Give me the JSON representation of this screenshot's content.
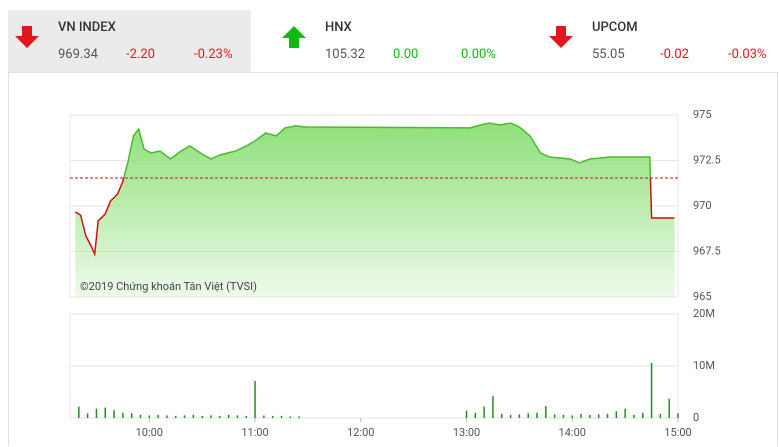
{
  "indices": [
    {
      "name": "VN INDEX",
      "value": "969.34",
      "change": "-2.20",
      "percent": "-0.23%",
      "color": "#e3161b"
    },
    {
      "name": "HNX",
      "value": "105.32",
      "change": "0.00",
      "percent": "0.00%",
      "color": "#12b912"
    },
    {
      "name": "UPCOM",
      "value": "55.05",
      "change": "-0.02",
      "percent": "-0.03%",
      "color": "#e3161b"
    }
  ],
  "chart_data": [
    {
      "type": "line",
      "watermark": "©2019 Chứng khoán Tân Việt (TVSI)",
      "x": [
        "09:18",
        "09:21",
        "09:24",
        "09:27",
        "09:29",
        "09:31",
        "09:35",
        "09:38",
        "09:42",
        "09:45",
        "09:48",
        "09:51",
        "09:54",
        "09:57",
        "10:01",
        "10:06",
        "10:12",
        "10:18",
        "10:23",
        "10:29",
        "10:35",
        "10:40",
        "10:49",
        "10:55",
        "11:00",
        "11:06",
        "11:12",
        "11:17",
        "11:23",
        "11:29",
        "13:02",
        "13:08",
        "13:13",
        "13:19",
        "13:25",
        "13:30",
        "13:36",
        "13:42",
        "13:47",
        "13:53",
        "13:59",
        "14:04",
        "14:10",
        "14:16",
        "14:21",
        "14:27",
        "14:44",
        "14:45",
        "14:58"
      ],
      "values": [
        969.67,
        969.5,
        968.35,
        967.8,
        967.36,
        969.18,
        969.56,
        970.27,
        970.66,
        971.37,
        972.47,
        973.85,
        974.23,
        973.13,
        972.91,
        973.02,
        972.58,
        973.02,
        973.3,
        972.91,
        972.58,
        972.8,
        973.02,
        973.3,
        973.57,
        974.01,
        973.85,
        974.29,
        974.4,
        974.34,
        974.29,
        974.45,
        974.56,
        974.45,
        974.56,
        974.34,
        973.85,
        972.91,
        972.69,
        972.64,
        972.58,
        972.36,
        972.58,
        972.64,
        972.69,
        972.69,
        972.69,
        969.34,
        969.34
      ],
      "reference": 971.54,
      "reference_color": "#cc1111",
      "up_color": "#4cbb2e",
      "down_color": "#cc1111",
      "area_color": "#8fe07a",
      "xlim": [
        "09:15",
        "15:00"
      ],
      "ylim": [
        965,
        975
      ],
      "yticks": [
        975,
        972.5,
        970,
        967.5,
        965
      ],
      "grid": true
    },
    {
      "type": "bar",
      "color": "#1f8f1f",
      "x": [
        "09:20",
        "09:25",
        "09:30",
        "09:35",
        "09:40",
        "09:45",
        "09:50",
        "09:55",
        "10:00",
        "10:05",
        "10:10",
        "10:15",
        "10:20",
        "10:25",
        "10:30",
        "10:35",
        "10:40",
        "10:45",
        "10:50",
        "10:55",
        "11:00",
        "11:05",
        "11:10",
        "11:15",
        "11:20",
        "11:25",
        "13:00",
        "13:05",
        "13:10",
        "13:15",
        "13:20",
        "13:25",
        "13:30",
        "13:35",
        "13:40",
        "13:45",
        "13:50",
        "13:55",
        "14:00",
        "14:05",
        "14:10",
        "14:15",
        "14:20",
        "14:25",
        "14:30",
        "14:35",
        "14:40",
        "14:45",
        "14:50",
        "14:55",
        "15:00"
      ],
      "values": [
        2.2,
        0.9,
        1.8,
        2.0,
        1.5,
        1.0,
        0.9,
        0.6,
        0.5,
        0.6,
        0.5,
        0.4,
        0.5,
        0.6,
        0.4,
        0.5,
        0.4,
        0.6,
        0.5,
        0.4,
        7.1,
        0.5,
        0.4,
        0.4,
        0.3,
        0.3,
        1.4,
        1.0,
        2.2,
        4.2,
        0.8,
        0.6,
        0.7,
        0.9,
        1.0,
        2.3,
        0.7,
        0.6,
        0.5,
        0.8,
        0.6,
        0.7,
        0.8,
        1.3,
        1.8,
        0.6,
        1.0,
        10.6,
        0.8,
        3.7,
        0.9
      ],
      "xlim": [
        "09:15",
        "15:00"
      ],
      "xticks": [
        "10:00",
        "11:00",
        "12:00",
        "13:00",
        "14:00",
        "15:00"
      ],
      "ylim": [
        0,
        20
      ],
      "yticks": [
        0,
        {
          "value": 10,
          "label": "10M"
        },
        {
          "value": 20,
          "label": "20M"
        }
      ],
      "grid": true
    }
  ]
}
